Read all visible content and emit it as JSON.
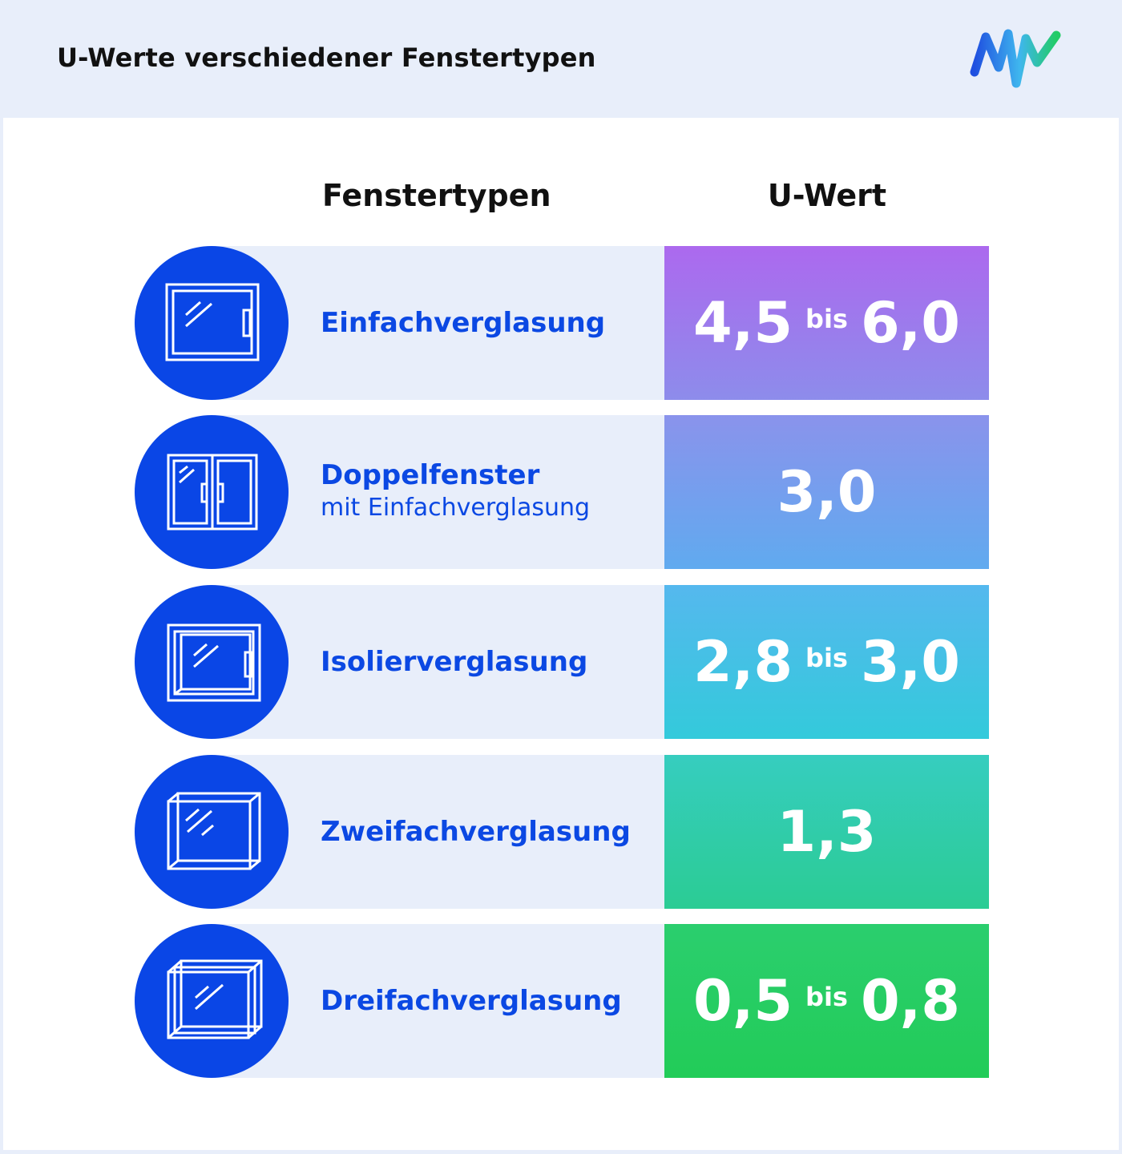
{
  "header": {
    "title": "U-Werte verschiedener Fenstertypen",
    "logo_icon": "mw-logo-icon",
    "logo_colors": [
      "#1f4fe0",
      "#3fb6ee",
      "#22cc66"
    ]
  },
  "table": {
    "col_type_label": "Fenstertypen",
    "col_value_label": "U-Wert",
    "range_word": "bis",
    "rows": [
      {
        "name": "Einfachverglasung",
        "sub": "",
        "from": "4,5",
        "to": "6,0",
        "icon": "single-pane-window-icon"
      },
      {
        "name": "Doppelfenster",
        "sub": "mit Einfachverglasung",
        "from": "3,0",
        "to": "",
        "icon": "double-window-icon"
      },
      {
        "name": "Isolierverglasung",
        "sub": "",
        "from": "2,8",
        "to": "3,0",
        "icon": "insulated-window-icon"
      },
      {
        "name": "Zweifachverglasung",
        "sub": "",
        "from": "1,3",
        "to": "",
        "icon": "double-glazing-icon"
      },
      {
        "name": "Dreifachverglasung",
        "sub": "",
        "from": "0,5",
        "to": "0,8",
        "icon": "triple-glazing-icon"
      }
    ]
  },
  "colors": {
    "icon_circle": "#0a46e6",
    "label_text": "#0b48e3",
    "row_band": "#e8eefa"
  }
}
